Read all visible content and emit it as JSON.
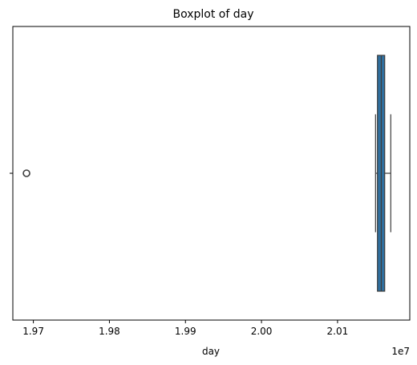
{
  "chart_data": {
    "type": "boxplot",
    "orientation": "horizontal",
    "title": "Boxplot of day",
    "xlabel": "day",
    "ylabel": "",
    "x_offset_label": "1e7",
    "xlim": [
      1.9673,
      2.0195
    ],
    "xticks": [
      1.97,
      1.98,
      1.99,
      2.0,
      2.01
    ],
    "xtick_labels": [
      "1.97",
      "1.98",
      "1.99",
      "2.00",
      "2.01"
    ],
    "ytick_labels": [
      ""
    ],
    "grid": false,
    "legend": "none",
    "box_color": "#2f6f9f",
    "box": {
      "whisker_low": 2.015,
      "q1": 2.01525,
      "median": 2.01575,
      "q3": 2.0162,
      "whisker_high": 2.017
    },
    "outliers": [
      1.9691
    ]
  }
}
